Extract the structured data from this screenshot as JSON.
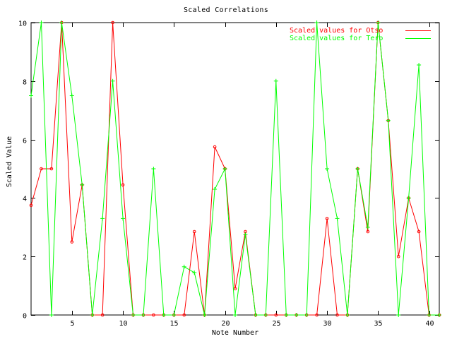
{
  "chart_data": {
    "type": "line",
    "title": "Scaled Correlations",
    "xlabel": "Note Number",
    "ylabel": "Scaled Value",
    "xlim": [
      1,
      41
    ],
    "ylim": [
      0,
      10
    ],
    "x_ticks": [
      5,
      10,
      15,
      20,
      25,
      30,
      35,
      40
    ],
    "y_ticks": [
      0,
      2,
      4,
      6,
      8,
      10
    ],
    "grid": false,
    "legend_position": "top-right",
    "x": [
      1,
      2,
      3,
      4,
      5,
      6,
      7,
      8,
      9,
      10,
      11,
      12,
      13,
      14,
      15,
      16,
      17,
      18,
      19,
      20,
      21,
      22,
      23,
      24,
      25,
      26,
      27,
      28,
      29,
      30,
      31,
      32,
      33,
      34,
      35,
      36,
      37,
      38,
      39,
      40,
      41
    ],
    "series": [
      {
        "name": "Scaled values for Otso",
        "color": "#ff0000",
        "values": [
          3.75,
          5.0,
          5.0,
          10.0,
          2.5,
          4.45,
          0.0,
          0.0,
          10.0,
          4.45,
          0.0,
          0.0,
          0.0,
          0.0,
          0.0,
          0.0,
          2.85,
          0.0,
          5.75,
          5.0,
          0.9,
          2.85,
          0.0,
          0.0,
          0.0,
          0.0,
          0.0,
          0.0,
          0.0,
          3.3,
          0.0,
          0.0,
          5.0,
          2.85,
          10.0,
          6.65,
          2.0,
          4.0,
          2.85,
          0.0,
          0.0
        ]
      },
      {
        "name": "Scaled values for Tero",
        "color": "#00ff00",
        "values": [
          7.5,
          10.0,
          0.0,
          10.0,
          7.5,
          4.45,
          0.0,
          3.3,
          8.0,
          3.3,
          0.0,
          0.0,
          5.0,
          0.0,
          0.0,
          1.65,
          1.45,
          0.0,
          4.3,
          5.0,
          0.0,
          2.75,
          0.0,
          0.0,
          8.0,
          0.0,
          0.0,
          0.0,
          10.0,
          5.0,
          3.3,
          0.0,
          5.0,
          3.0,
          10.0,
          6.65,
          0.0,
          4.0,
          8.55,
          0.0,
          0.0
        ]
      }
    ]
  }
}
